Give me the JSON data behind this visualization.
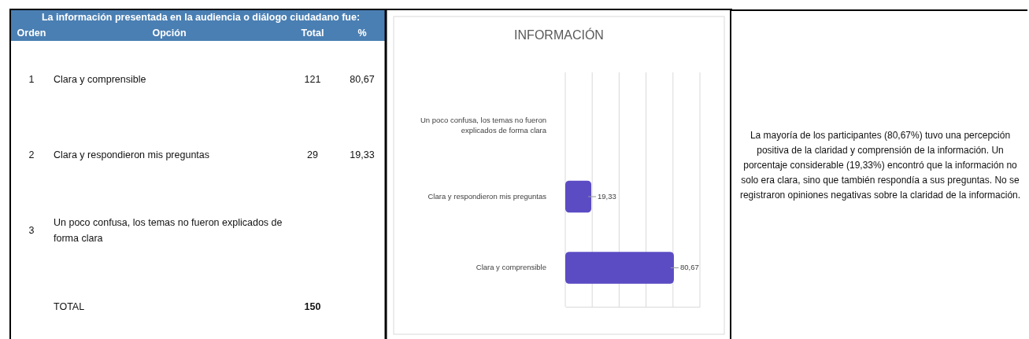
{
  "chart_data": [
    {
      "type": "other",
      "title": "La información presentada en la audiencia o diálogo ciudadano fue:",
      "categories": [
        "Clara y comprensible",
        "Clara y respondieron mis preguntas",
        "Un poco confusa, los temas no fueron explicados de forma clara"
      ],
      "series": [
        {
          "name": "Total",
          "values": [
            121,
            29,
            null
          ],
          "value_labels": [
            "121",
            "29",
            null
          ]
        },
        {
          "name": "%",
          "values": [
            80.67,
            19.33,
            null
          ],
          "value_labels": [
            "80,67",
            "19,33",
            null
          ]
        }
      ],
      "annotations": [
        "Orden",
        "Opción",
        "1",
        "2",
        "3",
        "TOTAL",
        "150"
      ]
    },
    {
      "type": "bar",
      "orientation": "horizontal",
      "title": "INFORMACIÓN",
      "categories": [
        "Un poco confusa, los temas no fueron explicados de forma clara",
        "Clara y respondieron mis preguntas",
        "Clara y comprensible"
      ],
      "series": [
        {
          "color": "#5b4cc4",
          "values": [
            null,
            19.33,
            80.67
          ],
          "value_labels": [
            null,
            "19,33",
            "80,67"
          ]
        }
      ],
      "xlim": [
        0,
        100
      ],
      "xticks": [
        {
          "value": 0,
          "label": null
        },
        {
          "value": 20,
          "label": null
        },
        {
          "value": 40,
          "label": null
        },
        {
          "value": 60,
          "label": null
        },
        {
          "value": 80,
          "label": null
        },
        {
          "value": 100,
          "label": null
        }
      ],
      "tick_labels": "y",
      "grid": "x"
    },
    {
      "type": "other",
      "annotations": [
        "La mayoría de los participantes (80,67%) tuvo una percepción positiva de la claridad y comprensión de la información. Un porcentaje considerable (19,33%) encontró que la información no solo era clara, sino que también respondía a sus preguntas. No se registraron opiniones negativas sobre la claridad de la información."
      ]
    }
  ]
}
